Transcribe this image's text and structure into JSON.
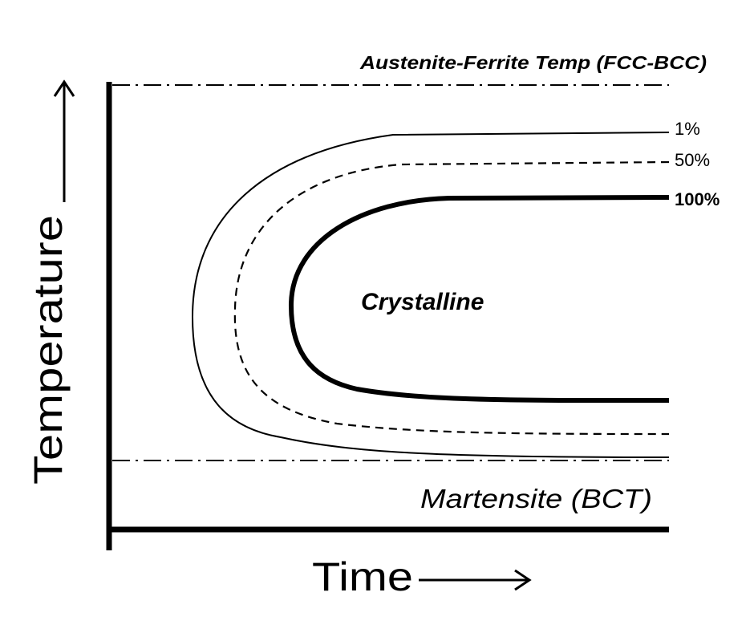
{
  "diagram": {
    "axes": {
      "y_label": "Temperature",
      "x_label": "Time"
    },
    "reference_lines": {
      "upper_label": "Austenite-Ferrite Temp (FCC-BCC)",
      "lower_label": "Martensite (BCT)"
    },
    "region_label": "Crystalline",
    "curves": [
      {
        "label": "1%",
        "style": "thin-solid"
      },
      {
        "label": "50%",
        "style": "dashed"
      },
      {
        "label": "100%",
        "style": "thick-solid"
      }
    ],
    "colors": {
      "ink": "#000000",
      "background": "#ffffff"
    }
  }
}
